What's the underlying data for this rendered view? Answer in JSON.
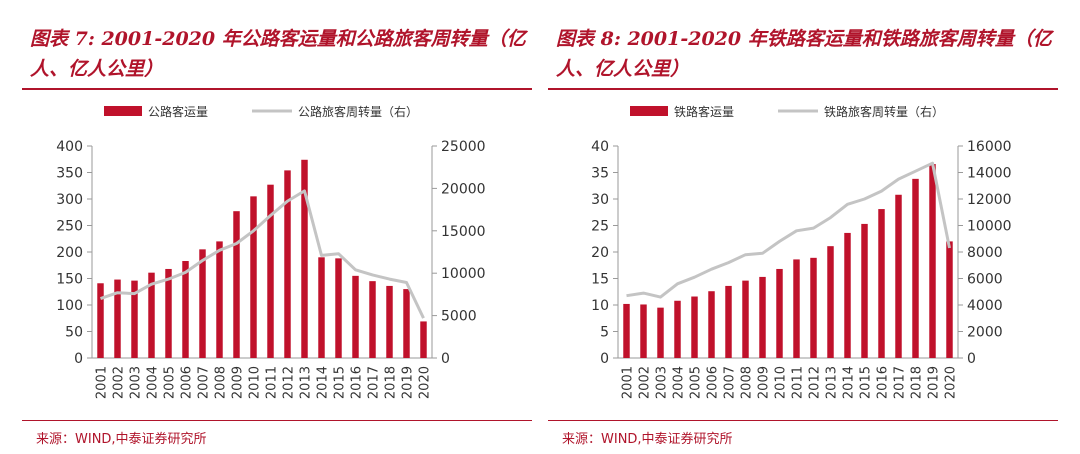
{
  "charts": [
    {
      "title": "图表 7: 2001-2020 年公路客运量和公路旅客周转量（亿人、亿人公里）",
      "source": "来源：WIND,中泰证券研究所",
      "legend_bar": "公路客运量",
      "legend_line": "公路旅客周转量（右）",
      "chart_data": {
        "type": "bar+line",
        "categories": [
          "2001",
          "2002",
          "2003",
          "2004",
          "2005",
          "2006",
          "2007",
          "2008",
          "2009",
          "2010",
          "2011",
          "2012",
          "2013",
          "2014",
          "2015",
          "2016",
          "2017",
          "2018",
          "2019",
          "2020"
        ],
        "series": [
          {
            "name": "公路客运量",
            "type": "bar",
            "axis": "left",
            "values": [
              141,
              148,
              146,
              161,
              168,
              183,
              205,
              220,
              277,
              305,
              327,
              354,
              374,
              190,
              188,
              155,
              145,
              136,
              130,
              69
            ]
          },
          {
            "name": "公路旅客周转量（右）",
            "type": "line",
            "axis": "right",
            "values": [
              7000,
              7700,
              7600,
              8700,
              9300,
              10100,
              11500,
              12700,
              13500,
              15000,
              16800,
              18500,
              19700,
              12100,
              12300,
              10400,
              9800,
              9300,
              8900,
              4700
            ]
          }
        ],
        "left_ticks": [
          0,
          50,
          100,
          150,
          200,
          250,
          300,
          350,
          400
        ],
        "right_ticks": [
          0,
          5000,
          10000,
          15000,
          20000,
          25000
        ],
        "ylim_left": [
          0,
          400
        ],
        "ylim_right": [
          0,
          25000
        ]
      }
    },
    {
      "title": "图表 8: 2001-2020 年铁路客运量和铁路旅客周转量（亿人、亿人公里）",
      "source": "来源：WIND,中泰证券研究所",
      "legend_bar": "铁路客运量",
      "legend_line": "铁路旅客周转量（右）",
      "chart_data": {
        "type": "bar+line",
        "categories": [
          "2001",
          "2002",
          "2003",
          "2004",
          "2005",
          "2006",
          "2007",
          "2008",
          "2009",
          "2010",
          "2011",
          "2012",
          "2013",
          "2014",
          "2015",
          "2016",
          "2017",
          "2018",
          "2019",
          "2020"
        ],
        "series": [
          {
            "name": "铁路客运量",
            "type": "bar",
            "axis": "left",
            "values": [
              10.2,
              10.1,
              9.5,
              10.8,
              11.6,
              12.6,
              13.6,
              14.6,
              15.3,
              16.8,
              18.6,
              18.9,
              21.1,
              23.6,
              25.3,
              28.1,
              30.8,
              33.8,
              36.6,
              22.0
            ]
          },
          {
            "name": "铁路旅客周转量（右）",
            "type": "line",
            "axis": "right",
            "values": [
              4700,
              4900,
              4600,
              5600,
              6100,
              6700,
              7200,
              7800,
              7900,
              8800,
              9600,
              9800,
              10600,
              11600,
              12000,
              12600,
              13500,
              14100,
              14700,
              8300
            ]
          }
        ],
        "left_ticks": [
          0,
          5,
          10,
          15,
          20,
          25,
          30,
          35,
          40
        ],
        "right_ticks": [
          0,
          2000,
          4000,
          6000,
          8000,
          10000,
          12000,
          14000,
          16000
        ],
        "ylim_left": [
          0,
          40
        ],
        "ylim_right": [
          0,
          16000
        ]
      }
    }
  ]
}
